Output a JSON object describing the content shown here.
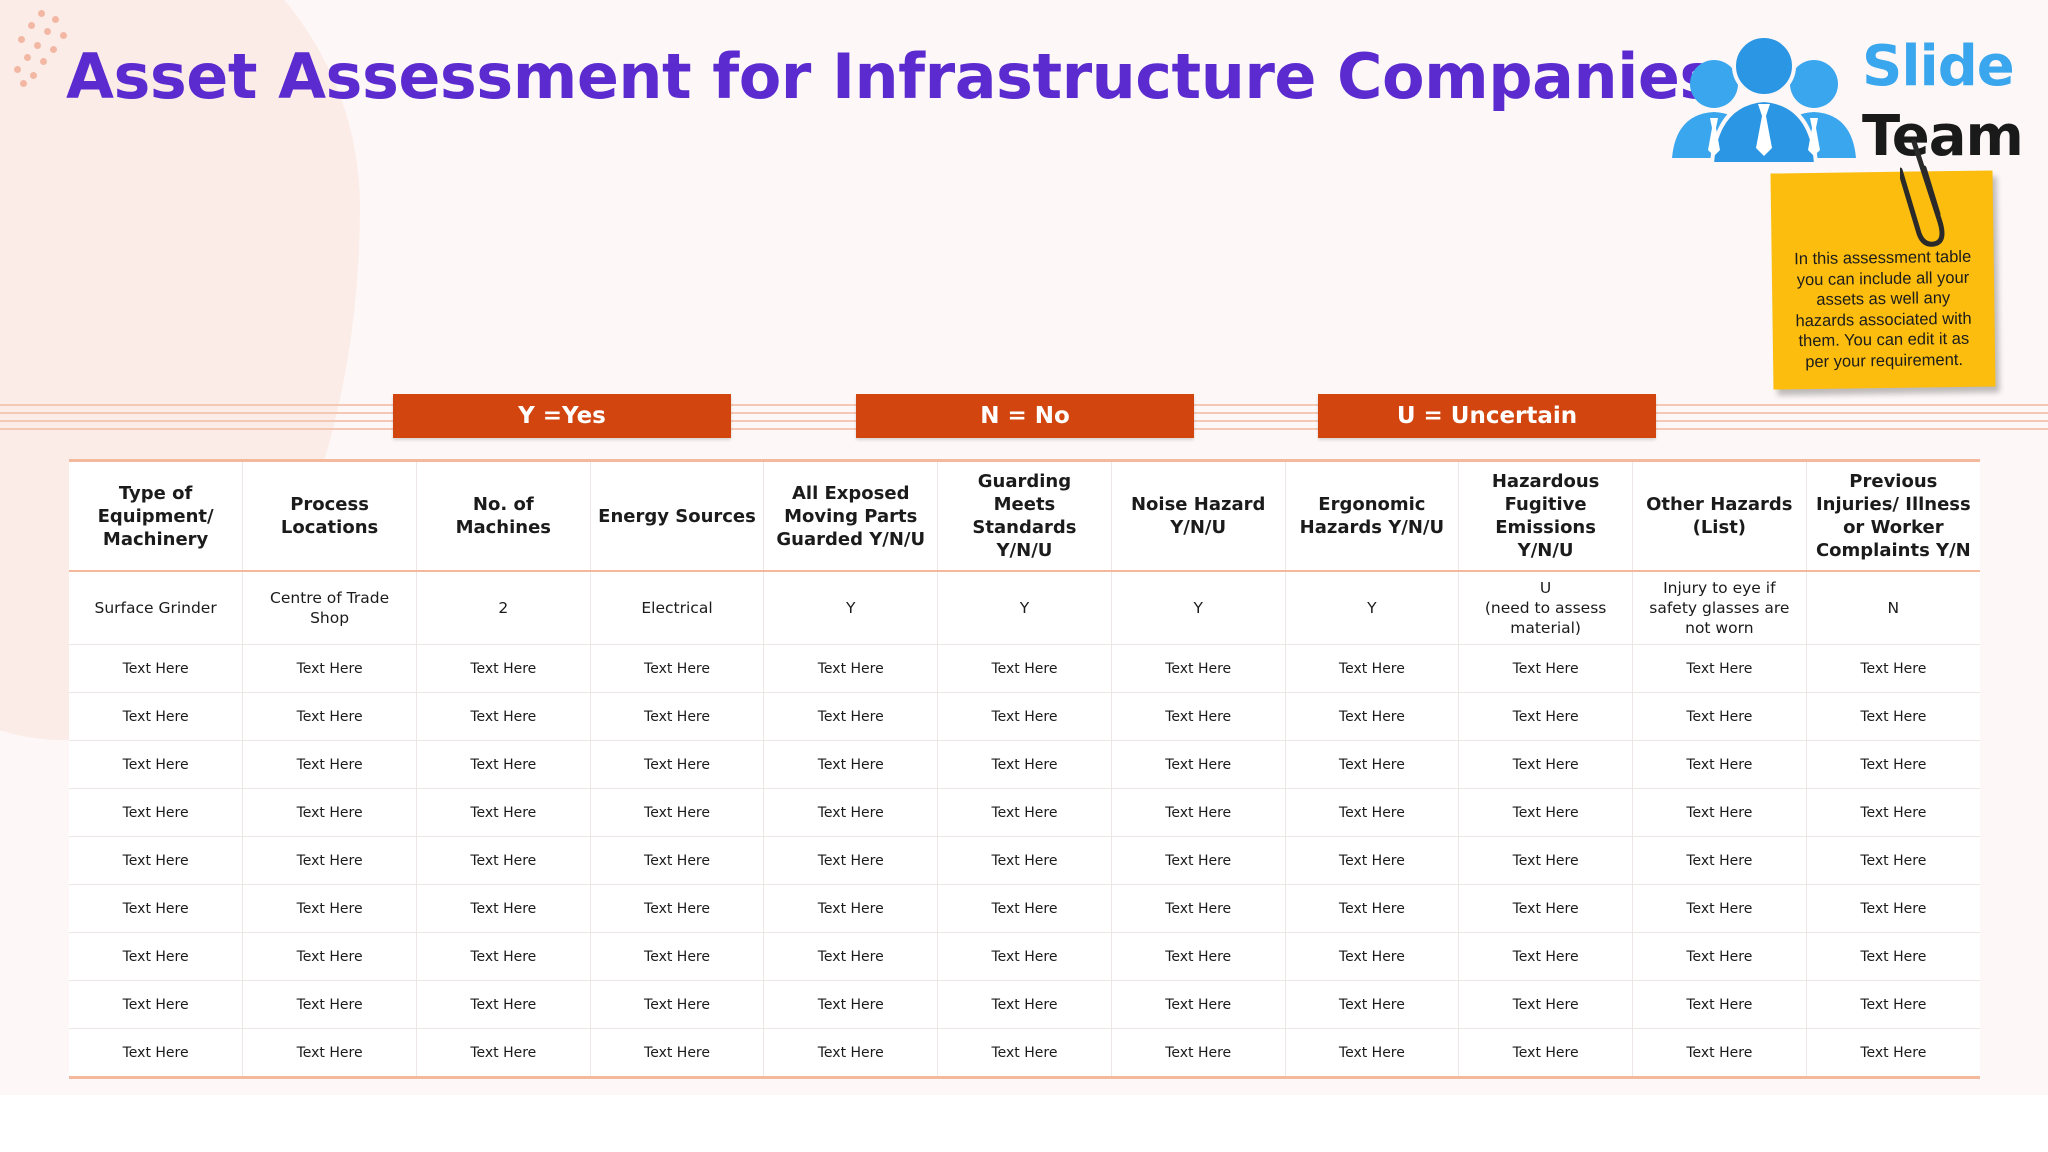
{
  "title": "Asset Assessment for Infrastructure Companies",
  "logo": {
    "line1": "Slide",
    "line2": "Team"
  },
  "note": "In this assessment table you can include all your assets as well any hazards associated with them. You can edit it as per your requirement.",
  "legend": [
    {
      "label": "Y =Yes"
    },
    {
      "label": "N = No"
    },
    {
      "label": "U = Uncertain"
    }
  ],
  "colors": {
    "title": "#5b2bd0",
    "legend_bg": "#d2450f",
    "note_bg": "#fcbd0e",
    "rule": "#f4b89c"
  },
  "table": {
    "headers": [
      "Type of Equipment/ Machinery",
      "Process Locations",
      "No. of Machines",
      "Energy Sources",
      "All Exposed Moving Parts Guarded Y/N/U",
      "Guarding Meets Standards Y/N/U",
      "Noise Hazard Y/N/U",
      "Ergonomic Hazards Y/N/U",
      "Hazardous Fugitive Emissions Y/N/U",
      "Other Hazards (List)",
      "Previous Injuries/ Illness or Worker Complaints Y/N"
    ],
    "rows": [
      [
        "Surface Grinder",
        "Centre of Trade Shop",
        "2",
        "Electrical",
        "Y",
        "Y",
        "Y",
        "Y",
        "U\n(need to assess material)",
        "Injury to eye if safety glasses are not worn",
        "N"
      ],
      [
        "Text Here",
        "Text Here",
        "Text Here",
        "Text Here",
        "Text Here",
        "Text Here",
        "Text Here",
        "Text Here",
        "Text Here",
        "Text Here",
        "Text Here"
      ],
      [
        "Text Here",
        "Text Here",
        "Text Here",
        "Text Here",
        "Text Here",
        "Text Here",
        "Text Here",
        "Text Here",
        "Text Here",
        "Text Here",
        "Text Here"
      ],
      [
        "Text Here",
        "Text Here",
        "Text Here",
        "Text Here",
        "Text Here",
        "Text Here",
        "Text Here",
        "Text Here",
        "Text Here",
        "Text Here",
        "Text Here"
      ],
      [
        "Text Here",
        "Text Here",
        "Text Here",
        "Text Here",
        "Text Here",
        "Text Here",
        "Text Here",
        "Text Here",
        "Text Here",
        "Text Here",
        "Text Here"
      ],
      [
        "Text Here",
        "Text Here",
        "Text Here",
        "Text Here",
        "Text Here",
        "Text Here",
        "Text Here",
        "Text Here",
        "Text Here",
        "Text Here",
        "Text Here"
      ],
      [
        "Text Here",
        "Text Here",
        "Text Here",
        "Text Here",
        "Text Here",
        "Text Here",
        "Text Here",
        "Text Here",
        "Text Here",
        "Text Here",
        "Text Here"
      ],
      [
        "Text Here",
        "Text Here",
        "Text Here",
        "Text Here",
        "Text Here",
        "Text Here",
        "Text Here",
        "Text Here",
        "Text Here",
        "Text Here",
        "Text Here"
      ],
      [
        "Text Here",
        "Text Here",
        "Text Here",
        "Text Here",
        "Text Here",
        "Text Here",
        "Text Here",
        "Text Here",
        "Text Here",
        "Text Here",
        "Text Here"
      ],
      [
        "Text Here",
        "Text Here",
        "Text Here",
        "Text Here",
        "Text Here",
        "Text Here",
        "Text Here",
        "Text Here",
        "Text Here",
        "Text Here",
        "Text Here"
      ]
    ]
  }
}
